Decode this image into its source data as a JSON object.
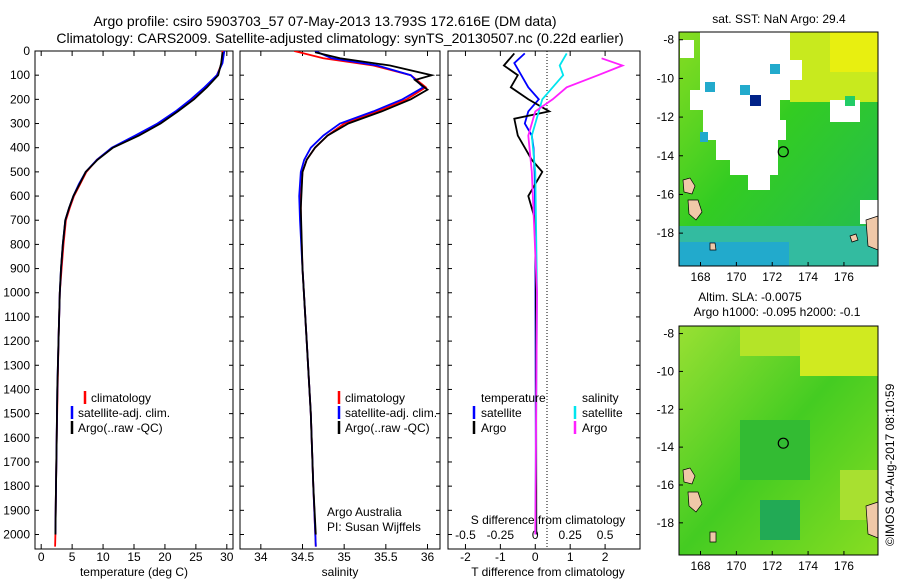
{
  "header": {
    "line1": "Argo profile: csiro 5903703_57 07-May-2013 13.793S 172.616E (DM data)",
    "line2": "Climatology: CARS2009. Satellite-adjusted climatology: synTS_20130507.nc (0.22d earlier)"
  },
  "colors": {
    "climatology": "#ff0000",
    "satellite": "#0000ff",
    "argo": "#000000",
    "salinity_satellite": "#00e5ee",
    "salinity_argo": "#ff20ff"
  },
  "chart_data": [
    {
      "type": "line",
      "xlabel": "temperature (deg C)",
      "ylabel": "",
      "xlim": [
        -1,
        31
      ],
      "ylim": [
        2060,
        0
      ],
      "xticks": [
        0,
        5,
        10,
        15,
        20,
        25,
        30
      ],
      "yticks": [
        0,
        100,
        200,
        300,
        400,
        500,
        600,
        700,
        800,
        900,
        1000,
        1100,
        1200,
        1300,
        1400,
        1500,
        1600,
        1700,
        1800,
        1900,
        2000
      ],
      "legend": {
        "position": "lower-center",
        "entries": [
          "climatology",
          "satellite-adj. clim.",
          "Argo(..raw -QC)"
        ]
      },
      "series": [
        {
          "name": "climatology",
          "color": "#ff0000",
          "x": [
            29.3,
            29.2,
            28.4,
            26.6,
            24.5,
            22.0,
            19.0,
            15.5,
            11.5,
            9.0,
            7.3,
            6.3,
            5.3,
            4.6,
            4.0,
            3.6,
            3.3,
            3.0,
            2.8,
            2.65,
            2.5,
            2.4,
            2.3,
            2.25
          ],
          "y": [
            0,
            50,
            100,
            150,
            200,
            250,
            300,
            350,
            400,
            450,
            500,
            550,
            600,
            650,
            700,
            800,
            900,
            1000,
            1200,
            1400,
            1600,
            1800,
            2000,
            2050
          ]
        },
        {
          "name": "satellite-adj. clim.",
          "color": "#0000ff",
          "x": [
            29.6,
            29.3,
            28.4,
            26.4,
            24.2,
            21.7,
            18.8,
            15.2,
            11.4,
            9.0,
            7.2,
            6.1,
            5.2,
            4.5,
            3.9,
            3.5,
            3.2,
            3.0,
            2.8,
            2.6,
            2.5,
            2.4,
            2.3
          ],
          "y": [
            0,
            50,
            100,
            150,
            200,
            250,
            300,
            350,
            400,
            450,
            500,
            550,
            600,
            650,
            700,
            800,
            900,
            1000,
            1200,
            1400,
            1600,
            1800,
            2000
          ]
        },
        {
          "name": "Argo(..raw -QC)",
          "color": "#000000",
          "x": [
            29.3,
            29.1,
            28.6,
            26.8,
            24.7,
            22.1,
            19.3,
            15.8,
            11.6,
            9.1,
            7.2,
            6.2,
            5.2,
            4.5,
            3.9,
            3.5,
            3.2,
            3.0,
            2.8,
            2.6,
            2.5,
            2.4,
            2.3
          ],
          "y": [
            5,
            50,
            100,
            150,
            200,
            250,
            300,
            350,
            400,
            450,
            500,
            550,
            600,
            650,
            700,
            800,
            900,
            1000,
            1200,
            1400,
            1600,
            1800,
            2000
          ]
        }
      ]
    },
    {
      "type": "line",
      "xlabel": "salinity",
      "xlim": [
        33.75,
        36.15
      ],
      "ylim": [
        2060,
        0
      ],
      "xticks": [
        34,
        34.5,
        35,
        35.5,
        36
      ],
      "legend": {
        "position": "lower-center",
        "entries": [
          "climatology",
          "satellite-adj. clim.",
          "Argo(..raw -QC)"
        ]
      },
      "annotation": [
        "Argo Australia",
        "PI: Susan Wijffels"
      ],
      "series": [
        {
          "name": "climatology",
          "color": "#ff0000",
          "x": [
            34.4,
            34.75,
            35.35,
            35.8,
            35.98,
            35.75,
            35.4,
            35.0,
            34.8,
            34.65,
            34.55,
            34.5,
            34.48,
            34.48,
            34.5,
            34.55,
            34.6,
            34.63,
            34.66
          ],
          "y": [
            0,
            30,
            60,
            100,
            150,
            200,
            250,
            300,
            350,
            400,
            450,
            500,
            600,
            700,
            900,
            1200,
            1500,
            1800,
            2050
          ]
        },
        {
          "name": "satellite-adj. clim.",
          "color": "#0000ff",
          "x": [
            34.65,
            34.85,
            35.4,
            35.8,
            35.95,
            35.7,
            35.35,
            34.95,
            34.75,
            34.6,
            34.52,
            34.48,
            34.46,
            34.47,
            34.5,
            34.55,
            34.6,
            34.63,
            34.66
          ],
          "y": [
            0,
            30,
            60,
            100,
            150,
            200,
            250,
            300,
            350,
            400,
            450,
            500,
            600,
            700,
            900,
            1200,
            1500,
            1800,
            2050
          ]
        },
        {
          "name": "Argo(..raw -QC)",
          "color": "#000000",
          "x": [
            34.65,
            34.95,
            35.55,
            36.05,
            35.85,
            36.0,
            35.8,
            35.45,
            35.05,
            34.8,
            34.65,
            34.55,
            34.5,
            34.48,
            34.5,
            34.55,
            34.6,
            34.63,
            34.66
          ],
          "y": [
            5,
            30,
            60,
            100,
            120,
            160,
            200,
            250,
            300,
            350,
            400,
            450,
            500,
            650,
            900,
            1200,
            1500,
            1800,
            2000
          ]
        }
      ]
    },
    {
      "type": "line",
      "xlabel": "T difference from climatology",
      "xlabel_top": "S difference from climatology",
      "xlim": [
        -2.5,
        3.0
      ],
      "ylim": [
        2060,
        0
      ],
      "xticks": [
        -2,
        -1,
        0,
        1,
        2
      ],
      "sticks": [
        {
          "label": "-0.5",
          "x": -2
        },
        {
          "label": "-0.25",
          "x": -1
        },
        {
          "label": "0",
          "x": 0
        },
        {
          "label": "0.25",
          "x": 1
        },
        {
          "label": "0.5",
          "x": 2
        }
      ],
      "legend": {
        "position": "lower-center",
        "temperature_header": "temperature",
        "salinity_header": "salinity",
        "entries": [
          "satellite",
          "Argo",
          "satellite",
          "Argo"
        ]
      },
      "series": [
        {
          "name": "temperature satellite",
          "color": "#0000ff",
          "x": [
            -0.3,
            -0.6,
            -0.4,
            -0.2,
            0.1,
            -0.2,
            -0.3,
            -0.1,
            -0.05,
            -0.02,
            0.0,
            0.02
          ],
          "y": [
            10,
            50,
            100,
            150,
            200,
            250,
            300,
            350,
            400,
            500,
            700,
            2000
          ]
        },
        {
          "name": "temperature Argo",
          "color": "#000000",
          "x": [
            -0.6,
            -0.9,
            -0.5,
            -0.7,
            -0.2,
            0.4,
            -0.6,
            -0.5,
            -0.3,
            -0.1,
            0.2,
            -0.2,
            0.0,
            0.02,
            0.03
          ],
          "y": [
            10,
            60,
            100,
            150,
            200,
            250,
            280,
            350,
            400,
            450,
            500,
            600,
            700,
            1000,
            2000
          ]
        },
        {
          "name": "salinity satellite",
          "color": "#00e5ee",
          "x": [
            0.9,
            0.7,
            0.8,
            0.5,
            0.2,
            0.1,
            -0.1,
            0.0,
            0.05,
            0.0
          ],
          "y": [
            10,
            60,
            100,
            150,
            200,
            250,
            350,
            500,
            1000,
            2000
          ]
        },
        {
          "name": "salinity Argo",
          "color": "#ff20ff",
          "x": [
            1.9,
            2.5,
            1.8,
            0.9,
            0.5,
            0.0,
            -0.2,
            -0.1,
            0.05,
            0.0
          ],
          "y": [
            30,
            60,
            100,
            150,
            200,
            250,
            350,
            500,
            1000,
            2000
          ]
        }
      ]
    },
    {
      "type": "heatmap",
      "title": "sat. SST: NaN Argo: 29.4",
      "xticks": [
        168,
        170,
        172,
        174,
        176
      ],
      "yticks": [
        -8,
        -10,
        -12,
        -14,
        -16,
        -18
      ],
      "xlim": [
        166.8,
        177.9
      ],
      "ylim": [
        -19.7,
        -7.6
      ],
      "marker": {
        "lon": 172.616,
        "lat": -13.793
      }
    },
    {
      "type": "heatmap",
      "title": "Altim. SLA: -0.0075",
      "subtitle": "Argo h1000: -0.095 h2000: -0.1",
      "xticks": [
        168,
        170,
        172,
        174,
        176
      ],
      "yticks": [
        -8,
        -10,
        -12,
        -14,
        -16,
        -18
      ],
      "xlim": [
        166.8,
        177.9
      ],
      "ylim": [
        -19.7,
        -7.6
      ],
      "marker": {
        "lon": 172.616,
        "lat": -13.793
      }
    }
  ],
  "footer": {
    "vertical_text": "©IMOS 04-Aug-2017 08:10:59"
  }
}
